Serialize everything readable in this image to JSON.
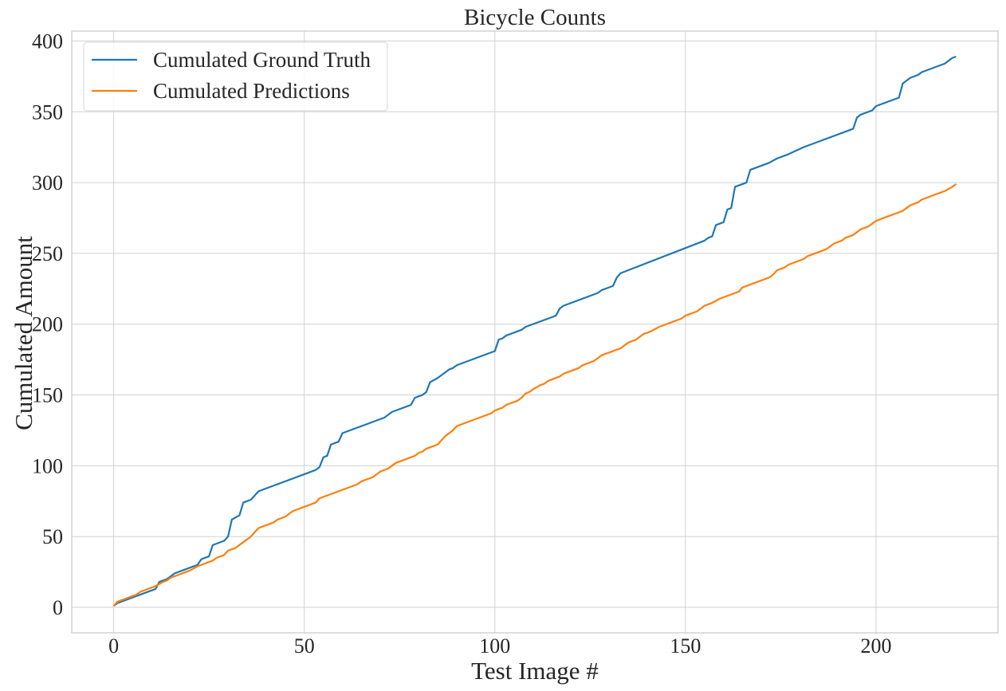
{
  "chart_data": {
    "type": "line",
    "title": "Bicycle Counts",
    "xlabel": "Test Image #",
    "ylabel": "Cumulated Amount",
    "xlim": [
      -11,
      232
    ],
    "ylim": [
      -18,
      407
    ],
    "xticks": [
      0,
      50,
      100,
      150,
      200
    ],
    "yticks": [
      0,
      50,
      100,
      150,
      200,
      250,
      300,
      350,
      400
    ],
    "grid": true,
    "legend": "top-left",
    "series": [
      {
        "name": "Cumulated Ground Truth",
        "color": "#1f77b4",
        "points": [
          [
            0,
            1
          ],
          [
            1,
            3
          ],
          [
            11,
            13
          ],
          [
            12,
            18
          ],
          [
            14,
            20
          ],
          [
            16,
            24
          ],
          [
            18,
            26
          ],
          [
            22,
            30
          ],
          [
            23,
            34
          ],
          [
            25,
            36
          ],
          [
            26,
            44
          ],
          [
            29,
            47
          ],
          [
            30,
            50
          ],
          [
            31,
            62
          ],
          [
            33,
            65
          ],
          [
            34,
            74
          ],
          [
            36,
            76
          ],
          [
            38,
            82
          ],
          [
            53,
            97
          ],
          [
            54,
            99
          ],
          [
            55,
            106
          ],
          [
            56,
            107
          ],
          [
            57,
            115
          ],
          [
            59,
            117
          ],
          [
            60,
            123
          ],
          [
            71,
            134
          ],
          [
            73,
            138
          ],
          [
            78,
            143
          ],
          [
            79,
            148
          ],
          [
            81,
            150
          ],
          [
            82,
            152
          ],
          [
            83,
            159
          ],
          [
            85,
            162
          ],
          [
            88,
            168
          ],
          [
            89,
            169
          ],
          [
            90,
            171
          ],
          [
            100,
            181
          ],
          [
            101,
            189
          ],
          [
            102,
            190
          ],
          [
            103,
            192
          ],
          [
            107,
            196
          ],
          [
            108,
            198
          ],
          [
            115,
            205
          ],
          [
            116,
            206
          ],
          [
            117,
            211
          ],
          [
            118,
            213
          ],
          [
            127,
            222
          ],
          [
            128,
            224
          ],
          [
            131,
            227
          ],
          [
            132,
            233
          ],
          [
            133,
            236
          ],
          [
            155,
            259
          ],
          [
            156,
            261
          ],
          [
            157,
            262
          ],
          [
            158,
            270
          ],
          [
            160,
            272
          ],
          [
            161,
            281
          ],
          [
            162,
            282
          ],
          [
            163,
            297
          ],
          [
            166,
            300
          ],
          [
            167,
            309
          ],
          [
            172,
            314
          ],
          [
            174,
            317
          ],
          [
            176,
            319
          ],
          [
            177,
            320
          ],
          [
            181,
            325
          ],
          [
            182,
            326
          ],
          [
            194,
            338
          ],
          [
            195,
            346
          ],
          [
            196,
            348
          ],
          [
            199,
            351
          ],
          [
            200,
            354
          ],
          [
            206,
            360
          ],
          [
            207,
            370
          ],
          [
            209,
            374
          ],
          [
            211,
            376
          ],
          [
            212,
            378
          ],
          [
            218,
            384
          ],
          [
            220,
            388
          ],
          [
            221,
            389
          ]
        ]
      },
      {
        "name": "Cumulated Predictions",
        "color": "#ff7f0e",
        "points": [
          [
            0,
            1
          ],
          [
            1,
            4
          ],
          [
            6,
            9
          ],
          [
            7,
            11
          ],
          [
            11,
            15
          ],
          [
            13,
            18
          ],
          [
            14,
            19
          ],
          [
            15,
            21
          ],
          [
            17,
            23
          ],
          [
            20,
            26
          ],
          [
            22,
            29
          ],
          [
            24,
            31
          ],
          [
            26,
            33
          ],
          [
            27,
            35
          ],
          [
            29,
            37
          ],
          [
            30,
            40
          ],
          [
            32,
            42
          ],
          [
            34,
            46
          ],
          [
            36,
            50
          ],
          [
            38,
            56
          ],
          [
            41,
            59
          ],
          [
            42,
            60
          ],
          [
            43,
            62
          ],
          [
            45,
            64
          ],
          [
            47,
            68
          ],
          [
            53,
            74
          ],
          [
            54,
            77
          ],
          [
            64,
            87
          ],
          [
            65,
            89
          ],
          [
            67,
            91
          ],
          [
            68,
            92
          ],
          [
            70,
            96
          ],
          [
            72,
            98
          ],
          [
            74,
            102
          ],
          [
            79,
            107
          ],
          [
            80,
            109
          ],
          [
            81,
            110
          ],
          [
            82,
            112
          ],
          [
            85,
            115
          ],
          [
            87,
            121
          ],
          [
            89,
            125
          ],
          [
            90,
            128
          ],
          [
            99,
            137
          ],
          [
            100,
            139
          ],
          [
            102,
            141
          ],
          [
            103,
            143
          ],
          [
            106,
            146
          ],
          [
            107,
            148
          ],
          [
            108,
            151
          ],
          [
            109,
            152
          ],
          [
            110,
            154
          ],
          [
            112,
            157
          ],
          [
            113,
            158
          ],
          [
            114,
            160
          ],
          [
            117,
            163
          ],
          [
            118,
            165
          ],
          [
            122,
            169
          ],
          [
            123,
            171
          ],
          [
            126,
            174
          ],
          [
            127,
            176
          ],
          [
            128,
            178
          ],
          [
            133,
            183
          ],
          [
            135,
            187
          ],
          [
            137,
            189
          ],
          [
            139,
            193
          ],
          [
            141,
            195
          ],
          [
            143,
            198
          ],
          [
            145,
            200
          ],
          [
            146,
            201
          ],
          [
            149,
            204
          ],
          [
            150,
            206
          ],
          [
            153,
            209
          ],
          [
            155,
            213
          ],
          [
            157,
            215
          ],
          [
            159,
            218
          ],
          [
            164,
            223
          ],
          [
            165,
            226
          ],
          [
            172,
            233
          ],
          [
            173,
            235
          ],
          [
            174,
            238
          ],
          [
            176,
            240
          ],
          [
            177,
            242
          ],
          [
            181,
            246
          ],
          [
            182,
            248
          ],
          [
            187,
            253
          ],
          [
            188,
            255
          ],
          [
            189,
            257
          ],
          [
            191,
            259
          ],
          [
            192,
            261
          ],
          [
            194,
            263
          ],
          [
            195,
            265
          ],
          [
            196,
            267
          ],
          [
            198,
            269
          ],
          [
            199,
            271
          ],
          [
            200,
            273
          ],
          [
            207,
            280
          ],
          [
            208,
            282
          ],
          [
            209,
            284
          ],
          [
            211,
            286
          ],
          [
            212,
            288
          ],
          [
            218,
            294
          ],
          [
            220,
            297
          ],
          [
            221,
            299
          ]
        ]
      }
    ]
  }
}
